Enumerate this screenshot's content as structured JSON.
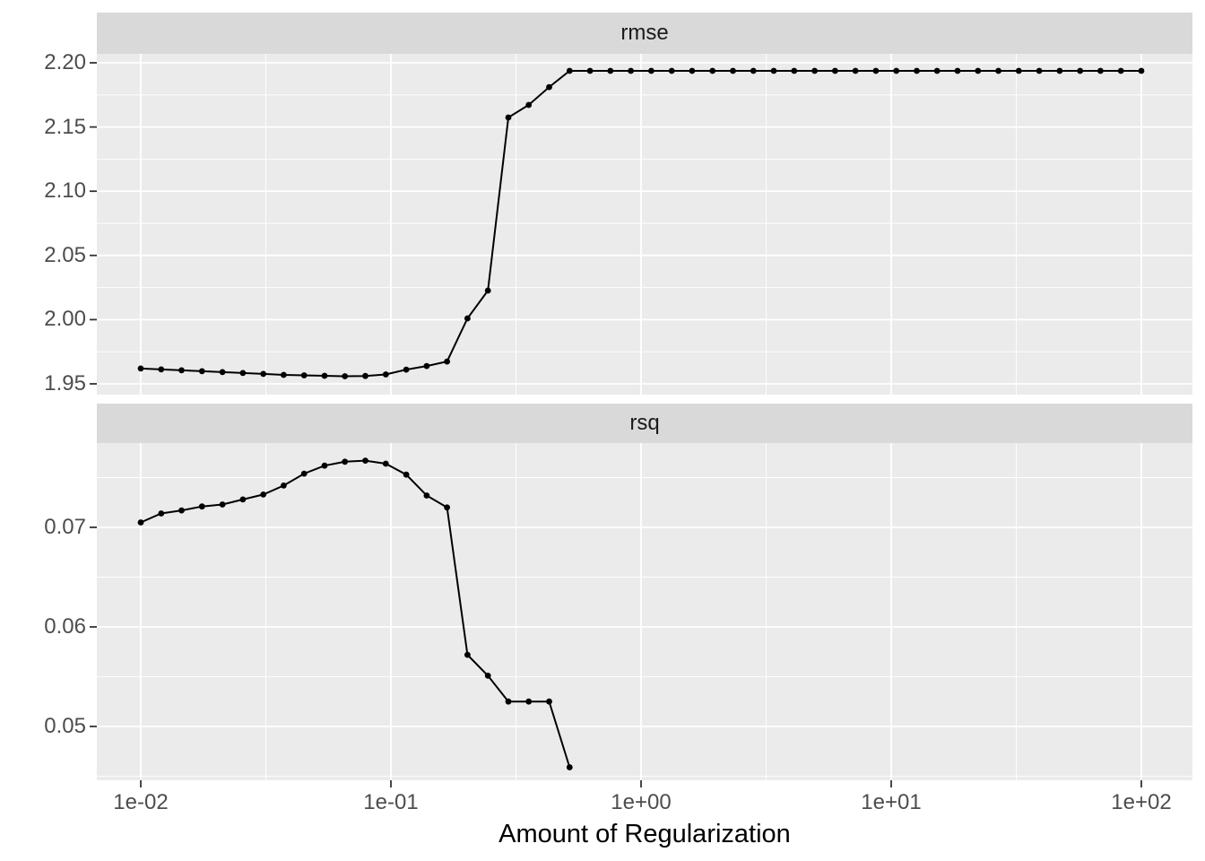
{
  "x_axis": {
    "title": "Amount of Regularization",
    "scale": "log10",
    "tick_labels": [
      "1e-02",
      "1e-01",
      "1e+00",
      "1e+01",
      "1e+02"
    ],
    "ticks_log10": [
      -2,
      -1,
      0,
      1,
      2
    ],
    "minor_ticks_log10": [
      -1.5,
      -0.5,
      0.5,
      1.5
    ],
    "lim_log10": [
      -2.1756,
      2.2043
    ]
  },
  "style": {
    "panel_bg": "#ebebeb",
    "strip_bg": "#d9d9d9",
    "grid_color": "#ffffff",
    "tick_mark_color": "#333333",
    "tick_label_color": "#4d4d4d",
    "series_color": "#000000"
  },
  "chart_data": [
    {
      "type": "line",
      "title": "rmse",
      "legend": false,
      "grid": true,
      "marker": "point",
      "ylim": [
        1.9416,
        2.207
      ],
      "y_ticks": [
        2.2,
        2.15,
        2.1,
        2.05,
        2.0,
        1.95
      ],
      "y_tick_labels": [
        "2.20",
        "2.15",
        "2.10",
        "2.05",
        "2.00",
        "1.95"
      ],
      "y_minor": [
        2.175,
        2.125,
        2.075,
        2.025,
        1.975
      ],
      "x": [
        0.01,
        0.01207,
        0.01456,
        0.01757,
        0.02121,
        0.0256,
        0.03089,
        0.03728,
        0.04498,
        0.05429,
        0.06551,
        0.07906,
        0.09541,
        0.11514,
        0.13895,
        0.16768,
        0.20236,
        0.24421,
        0.29471,
        0.35565,
        0.42919,
        0.51795,
        0.62506,
        0.75431,
        0.9103,
        1.09854,
        1.32571,
        1.59986,
        1.9307,
        2.32995,
        2.81177,
        3.39322,
        4.09492,
        4.94171,
        5.96362,
        7.19686,
        8.68511,
        10.4811,
        12.6486,
        15.2642,
        18.4207,
        22.23,
        26.827,
        32.3746,
        39.0694,
        47.1487,
        56.8987,
        68.6649,
        82.8643,
        100
      ],
      "values": [
        1.9619,
        1.9612,
        1.9605,
        1.9598,
        1.9591,
        1.9584,
        1.9577,
        1.957,
        1.9566,
        1.9563,
        1.9559,
        1.9561,
        1.9573,
        1.9611,
        1.9639,
        1.9674,
        2.001,
        2.0226,
        2.1574,
        2.1672,
        2.1811,
        2.1937,
        2.1937,
        2.1937,
        2.1937,
        2.1937,
        2.1937,
        2.1937,
        2.1937,
        2.1937,
        2.1937,
        2.1937,
        2.1937,
        2.1937,
        2.1937,
        2.1937,
        2.1937,
        2.1937,
        2.1937,
        2.1937,
        2.1937,
        2.1937,
        2.1937,
        2.1937,
        2.1937,
        2.1937,
        2.1937,
        2.1937,
        2.1937,
        2.1937
      ]
    },
    {
      "type": "line",
      "title": "rsq",
      "legend": false,
      "grid": true,
      "marker": "point",
      "ylim": [
        0.04459,
        0.07847
      ],
      "y_ticks": [
        0.07,
        0.06,
        0.05
      ],
      "y_tick_labels": [
        "0.07",
        "0.06",
        "0.05"
      ],
      "y_minor": [
        0.075,
        0.065,
        0.055,
        0.045
      ],
      "x": [
        0.01,
        0.01207,
        0.01456,
        0.01757,
        0.02121,
        0.0256,
        0.03089,
        0.03728,
        0.04498,
        0.05429,
        0.06551,
        0.07906,
        0.09541,
        0.11514,
        0.13895,
        0.16768,
        0.20236,
        0.24421,
        0.29471,
        0.35565,
        0.42919,
        0.51795
      ],
      "values": [
        0.0705,
        0.0714,
        0.0717,
        0.0721,
        0.0723,
        0.0728,
        0.0733,
        0.0742,
        0.0754,
        0.0762,
        0.0766,
        0.0767,
        0.0764,
        0.0753,
        0.0732,
        0.072,
        0.0572,
        0.0551,
        0.0525,
        0.0525,
        0.0525,
        0.0459
      ]
    }
  ]
}
